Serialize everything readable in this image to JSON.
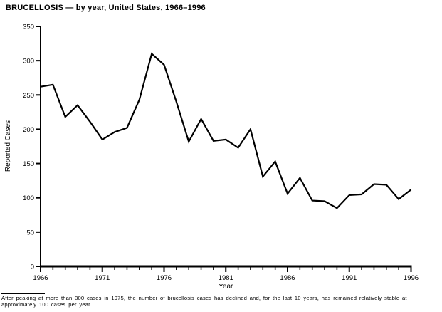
{
  "title": "BRUCELLOSIS — by year, United States, 1966–1996",
  "footnote": "After peaking at more than 300 cases in 1975, the number of brucellosis cases has declined and, for the last 10 years, has remained relatively stable at approximately 100 cases per year.",
  "colors": {
    "line": "#000000",
    "axis": "#000000",
    "text": "#000000",
    "background": "#ffffff"
  },
  "chart_data": {
    "type": "line",
    "title": "BRUCELLOSIS — by year, United States, 1966–1996",
    "xlabel": "Year",
    "ylabel": "Reported Cases",
    "x": [
      1966,
      1967,
      1968,
      1969,
      1970,
      1971,
      1972,
      1973,
      1974,
      1975,
      1976,
      1977,
      1978,
      1979,
      1980,
      1981,
      1982,
      1983,
      1984,
      1985,
      1986,
      1987,
      1988,
      1989,
      1990,
      1991,
      1992,
      1993,
      1994,
      1995,
      1996
    ],
    "values": [
      262,
      265,
      218,
      235,
      211,
      185,
      196,
      202,
      243,
      310,
      294,
      240,
      182,
      215,
      183,
      185,
      173,
      200,
      131,
      153,
      106,
      129,
      96,
      95,
      85,
      104,
      105,
      120,
      119,
      98,
      112
    ],
    "xlim": [
      1966,
      1996
    ],
    "ylim": [
      0,
      350
    ],
    "y_ticks": [
      0,
      50,
      100,
      150,
      200,
      250,
      300,
      350
    ],
    "x_major_ticks": [
      1966,
      1971,
      1976,
      1981,
      1986,
      1991,
      1996
    ],
    "x_minor_tick_interval": 1,
    "grid": false,
    "legend_position": "none"
  }
}
